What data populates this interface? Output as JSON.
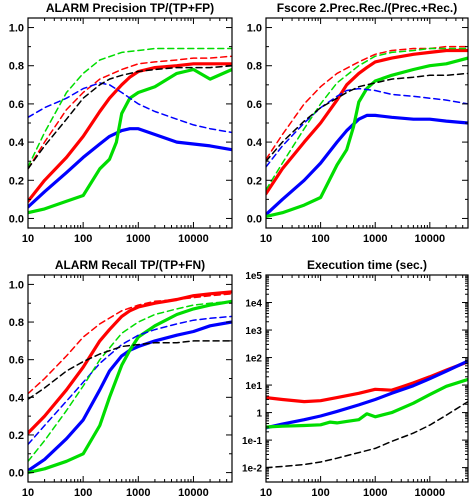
{
  "chart_data": [
    {
      "type": "line",
      "title": "ALARM  Precision  TP/(TP+FP)",
      "x_scale": "log",
      "xlim": [
        10,
        50000
      ],
      "ylim": [
        -0.05,
        1.05
      ],
      "x_ticks": [
        "10",
        "100",
        "1000",
        "10000"
      ],
      "y_ticks": [
        "0.0",
        "0.2",
        "0.4",
        "0.6",
        "0.8",
        "1.0"
      ],
      "series": [
        {
          "color": "#ff0000",
          "style": "solid",
          "x": [
            10,
            20,
            50,
            100,
            200,
            300,
            500,
            700,
            1000,
            2000,
            5000,
            10000,
            20000,
            50000
          ],
          "y": [
            0.09,
            0.2,
            0.32,
            0.43,
            0.56,
            0.63,
            0.7,
            0.74,
            0.77,
            0.79,
            0.8,
            0.81,
            0.81,
            0.81
          ]
        },
        {
          "color": "#0000ff",
          "style": "solid",
          "x": [
            10,
            20,
            50,
            100,
            200,
            300,
            500,
            700,
            1000,
            2000,
            5000,
            10000,
            20000,
            50000
          ],
          "y": [
            0.06,
            0.14,
            0.24,
            0.32,
            0.39,
            0.43,
            0.46,
            0.47,
            0.47,
            0.44,
            0.4,
            0.39,
            0.38,
            0.36
          ]
        },
        {
          "color": "#00dd00",
          "style": "solid",
          "x": [
            10,
            20,
            50,
            100,
            200,
            300,
            400,
            500,
            700,
            1000,
            2000,
            5000,
            10000,
            20000,
            50000
          ],
          "y": [
            0.03,
            0.05,
            0.09,
            0.12,
            0.26,
            0.31,
            0.4,
            0.55,
            0.63,
            0.66,
            0.69,
            0.76,
            0.78,
            0.73,
            0.78
          ]
        },
        {
          "color": "#ff0000",
          "style": "dashed",
          "x": [
            10,
            20,
            50,
            100,
            200,
            500,
            1000,
            2000,
            5000,
            10000,
            20000,
            50000
          ],
          "y": [
            0.26,
            0.4,
            0.57,
            0.66,
            0.73,
            0.78,
            0.81,
            0.82,
            0.83,
            0.84,
            0.84,
            0.85
          ]
        },
        {
          "color": "#0000ff",
          "style": "dashed",
          "x": [
            10,
            20,
            50,
            100,
            200,
            300,
            500,
            1000,
            2000,
            5000,
            10000,
            20000,
            50000
          ],
          "y": [
            0.53,
            0.58,
            0.63,
            0.68,
            0.71,
            0.7,
            0.66,
            0.6,
            0.56,
            0.52,
            0.49,
            0.47,
            0.45
          ]
        },
        {
          "color": "#00dd00",
          "style": "dashed",
          "x": [
            10,
            20,
            50,
            100,
            200,
            500,
            1000,
            2000,
            5000,
            10000,
            20000,
            50000
          ],
          "y": [
            0.27,
            0.45,
            0.66,
            0.76,
            0.83,
            0.87,
            0.88,
            0.89,
            0.89,
            0.89,
            0.89,
            0.89
          ]
        },
        {
          "color": "#000000",
          "style": "dashed",
          "x": [
            10,
            20,
            50,
            100,
            200,
            300,
            500,
            1000,
            2000,
            5000,
            10000,
            20000,
            50000
          ],
          "y": [
            0.26,
            0.38,
            0.52,
            0.63,
            0.7,
            0.73,
            0.75,
            0.77,
            0.78,
            0.79,
            0.79,
            0.79,
            0.8
          ]
        }
      ]
    },
    {
      "type": "line",
      "title": "Fscore  2.Prec.Rec./(Prec.+Rec.)",
      "x_scale": "log",
      "xlim": [
        10,
        50000
      ],
      "ylim": [
        -0.05,
        1.05
      ],
      "x_ticks": [
        "10",
        "100",
        "1000",
        "10000"
      ],
      "y_ticks": [
        "0.0",
        "0.2",
        "0.4",
        "0.6",
        "0.8",
        "1.0"
      ],
      "series": [
        {
          "color": "#ff0000",
          "style": "solid",
          "x": [
            10,
            20,
            50,
            100,
            200,
            300,
            500,
            700,
            1000,
            2000,
            5000,
            10000,
            20000,
            50000
          ],
          "y": [
            0.13,
            0.26,
            0.4,
            0.5,
            0.62,
            0.7,
            0.76,
            0.79,
            0.82,
            0.84,
            0.86,
            0.87,
            0.88,
            0.88
          ]
        },
        {
          "color": "#0000ff",
          "style": "solid",
          "x": [
            10,
            20,
            50,
            100,
            200,
            300,
            500,
            700,
            1000,
            2000,
            5000,
            10000,
            20000,
            50000
          ],
          "y": [
            0.02,
            0.1,
            0.2,
            0.29,
            0.4,
            0.46,
            0.52,
            0.54,
            0.54,
            0.53,
            0.52,
            0.52,
            0.51,
            0.5
          ]
        },
        {
          "color": "#00dd00",
          "style": "solid",
          "x": [
            10,
            20,
            50,
            100,
            200,
            300,
            400,
            500,
            700,
            1000,
            2000,
            5000,
            10000,
            20000,
            50000
          ],
          "y": [
            0.01,
            0.03,
            0.07,
            0.11,
            0.28,
            0.36,
            0.48,
            0.61,
            0.68,
            0.72,
            0.75,
            0.78,
            0.8,
            0.81,
            0.84
          ]
        },
        {
          "color": "#ff0000",
          "style": "dashed",
          "x": [
            10,
            20,
            50,
            100,
            200,
            500,
            1000,
            2000,
            5000,
            10000,
            20000,
            50000
          ],
          "y": [
            0.31,
            0.44,
            0.6,
            0.69,
            0.76,
            0.82,
            0.86,
            0.88,
            0.89,
            0.89,
            0.9,
            0.9
          ]
        },
        {
          "color": "#0000ff",
          "style": "dashed",
          "x": [
            10,
            20,
            50,
            100,
            200,
            300,
            500,
            1000,
            2000,
            5000,
            10000,
            20000,
            50000
          ],
          "y": [
            0.27,
            0.38,
            0.5,
            0.58,
            0.64,
            0.67,
            0.68,
            0.67,
            0.65,
            0.64,
            0.63,
            0.62,
            0.6
          ]
        },
        {
          "color": "#00dd00",
          "style": "dashed",
          "x": [
            10,
            20,
            50,
            100,
            200,
            500,
            1000,
            2000,
            5000,
            10000,
            20000,
            50000
          ],
          "y": [
            0.15,
            0.29,
            0.47,
            0.6,
            0.71,
            0.8,
            0.85,
            0.87,
            0.88,
            0.89,
            0.89,
            0.89
          ]
        },
        {
          "color": "#000000",
          "style": "dashed",
          "x": [
            10,
            20,
            50,
            100,
            200,
            300,
            500,
            1000,
            2000,
            5000,
            10000,
            20000,
            50000
          ],
          "y": [
            0.3,
            0.4,
            0.51,
            0.58,
            0.63,
            0.66,
            0.69,
            0.71,
            0.73,
            0.74,
            0.75,
            0.75,
            0.76
          ]
        }
      ]
    },
    {
      "type": "line",
      "title": "ALARM  Recall  TP/(TP+FN)",
      "x_scale": "log",
      "xlim": [
        10,
        50000
      ],
      "ylim": [
        -0.05,
        1.05
      ],
      "x_ticks": [
        "10",
        "100",
        "1000",
        "10000"
      ],
      "y_ticks": [
        "0.0",
        "0.2",
        "0.4",
        "0.6",
        "0.8",
        "1.0"
      ],
      "series": [
        {
          "color": "#ff0000",
          "style": "solid",
          "x": [
            10,
            20,
            50,
            100,
            200,
            300,
            500,
            700,
            1000,
            2000,
            5000,
            10000,
            20000,
            50000
          ],
          "y": [
            0.21,
            0.3,
            0.44,
            0.56,
            0.7,
            0.76,
            0.83,
            0.86,
            0.88,
            0.9,
            0.92,
            0.94,
            0.95,
            0.96
          ]
        },
        {
          "color": "#0000ff",
          "style": "solid",
          "x": [
            10,
            20,
            50,
            100,
            200,
            300,
            500,
            700,
            1000,
            2000,
            5000,
            10000,
            20000,
            50000
          ],
          "y": [
            0.01,
            0.07,
            0.18,
            0.28,
            0.44,
            0.54,
            0.62,
            0.65,
            0.67,
            0.7,
            0.73,
            0.75,
            0.78,
            0.8
          ]
        },
        {
          "color": "#00dd00",
          "style": "solid",
          "x": [
            10,
            20,
            50,
            100,
            200,
            300,
            500,
            700,
            1000,
            2000,
            5000,
            10000,
            20000,
            50000
          ],
          "y": [
            0.0,
            0.02,
            0.06,
            0.1,
            0.25,
            0.4,
            0.57,
            0.65,
            0.72,
            0.78,
            0.84,
            0.87,
            0.89,
            0.91
          ]
        },
        {
          "color": "#ff0000",
          "style": "dashed",
          "x": [
            10,
            20,
            50,
            100,
            200,
            500,
            1000,
            2000,
            5000,
            10000,
            20000,
            50000
          ],
          "y": [
            0.42,
            0.5,
            0.62,
            0.72,
            0.79,
            0.86,
            0.89,
            0.91,
            0.92,
            0.93,
            0.94,
            0.95
          ]
        },
        {
          "color": "#0000ff",
          "style": "dashed",
          "x": [
            10,
            20,
            50,
            100,
            200,
            500,
            1000,
            2000,
            5000,
            10000,
            20000,
            50000
          ],
          "y": [
            0.15,
            0.25,
            0.38,
            0.48,
            0.58,
            0.68,
            0.73,
            0.76,
            0.79,
            0.81,
            0.82,
            0.83
          ]
        },
        {
          "color": "#00dd00",
          "style": "dashed",
          "x": [
            10,
            20,
            50,
            100,
            200,
            500,
            1000,
            2000,
            5000,
            10000,
            20000,
            50000
          ],
          "y": [
            0.06,
            0.17,
            0.33,
            0.46,
            0.6,
            0.74,
            0.8,
            0.84,
            0.87,
            0.89,
            0.9,
            0.91
          ]
        },
        {
          "color": "#000000",
          "style": "dashed",
          "x": [
            10,
            20,
            50,
            100,
            200,
            500,
            1000,
            2000,
            5000,
            10000,
            20000,
            50000
          ],
          "y": [
            0.39,
            0.45,
            0.54,
            0.59,
            0.63,
            0.67,
            0.68,
            0.69,
            0.69,
            0.7,
            0.7,
            0.7
          ]
        }
      ]
    },
    {
      "type": "line",
      "title": "Execution time (sec.)",
      "x_scale": "log",
      "y_scale": "log",
      "xlim": [
        10,
        50000
      ],
      "ylim": [
        0.003,
        100000
      ],
      "x_ticks": [
        "10",
        "100",
        "1000",
        "10000"
      ],
      "y_ticks": [
        "1e-2",
        "1e-1",
        "1",
        "1e1",
        "1e2",
        "1e3",
        "1e4",
        "1e5"
      ],
      "series": [
        {
          "color": "#ff0000",
          "style": "solid",
          "x": [
            10,
            20,
            50,
            100,
            200,
            500,
            1000,
            2000,
            3000,
            5000,
            10000,
            20000,
            50000
          ],
          "y": [
            3.5,
            3.0,
            2.5,
            2.7,
            3.5,
            5.0,
            7.0,
            6.5,
            8.5,
            12,
            20,
            35,
            70
          ]
        },
        {
          "color": "#0000ff",
          "style": "solid",
          "x": [
            10,
            20,
            50,
            100,
            200,
            500,
            1000,
            2000,
            5000,
            10000,
            20000,
            50000
          ],
          "y": [
            0.28,
            0.38,
            0.55,
            0.75,
            1.1,
            1.9,
            3.0,
            5.0,
            9.5,
            17,
            32,
            75
          ]
        },
        {
          "color": "#00dd00",
          "style": "solid",
          "x": [
            10,
            20,
            50,
            100,
            150,
            200,
            300,
            500,
            700,
            1000,
            2000,
            5000,
            10000,
            20000,
            50000
          ],
          "y": [
            0.3,
            0.32,
            0.34,
            0.36,
            0.45,
            0.42,
            0.48,
            0.55,
            0.9,
            0.7,
            1.0,
            2.2,
            4.5,
            9,
            16
          ]
        },
        {
          "color": "#000000",
          "style": "dashed",
          "x": [
            10,
            20,
            50,
            100,
            200,
            500,
            1000,
            2000,
            5000,
            10000,
            20000,
            50000
          ],
          "y": [
            0.01,
            0.011,
            0.013,
            0.016,
            0.022,
            0.035,
            0.05,
            0.09,
            0.18,
            0.35,
            0.8,
            2.5
          ]
        }
      ]
    }
  ]
}
